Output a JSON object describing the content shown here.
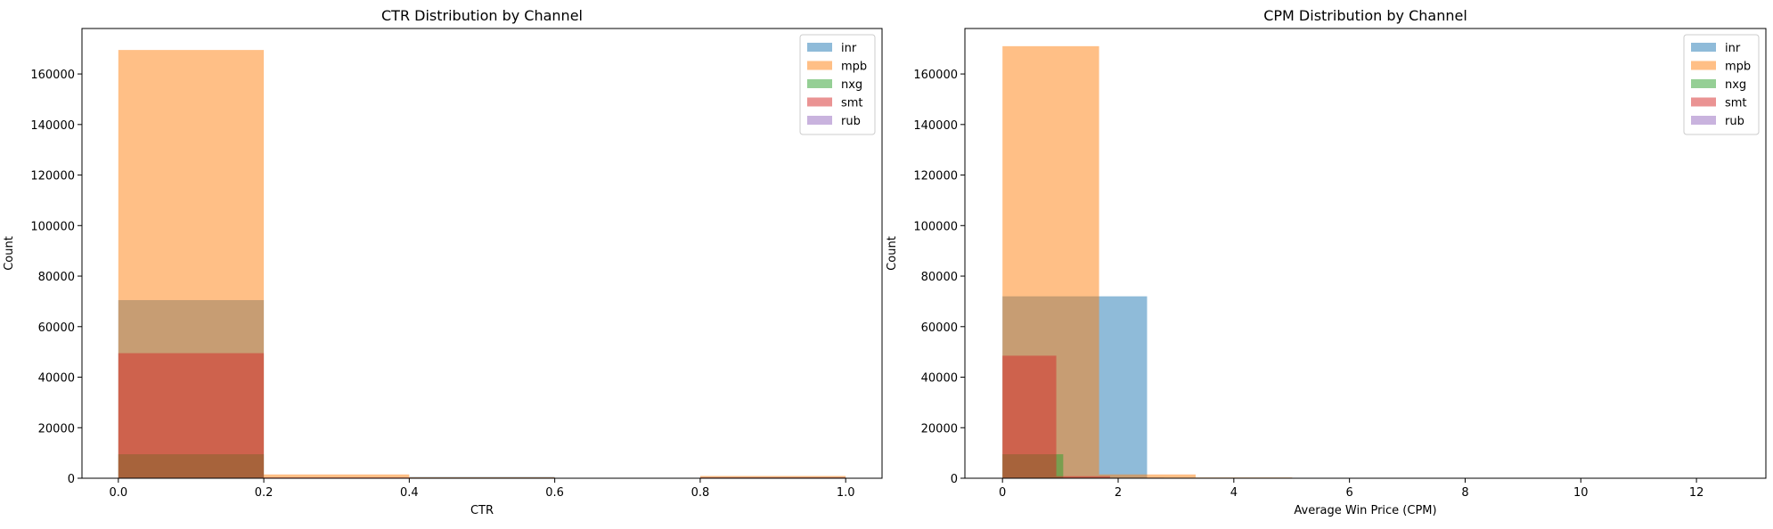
{
  "chart_data": [
    {
      "type": "histogram",
      "title": "CTR Distribution by Channel",
      "xlabel": "CTR",
      "ylabel": "Count",
      "xlim": [
        -0.05,
        1.05
      ],
      "ylim": [
        0,
        178000
      ],
      "xticks": [
        0.0,
        0.2,
        0.4,
        0.6,
        0.8,
        1.0
      ],
      "xtick_labels": [
        "0.0",
        "0.2",
        "0.4",
        "0.6",
        "0.8",
        "1.0"
      ],
      "yticks": [
        0,
        20000,
        40000,
        60000,
        80000,
        100000,
        120000,
        140000,
        160000
      ],
      "ytick_labels": [
        "0",
        "20000",
        "40000",
        "60000",
        "80000",
        "100000",
        "120000",
        "140000",
        "160000"
      ],
      "legend_position": "top-right",
      "series": [
        {
          "name": "inr",
          "color": "#1f77b4",
          "bins": [
            [
              0.0,
              0.2,
              70500
            ],
            [
              0.2,
              0.4,
              0
            ],
            [
              0.4,
              0.6,
              500
            ],
            [
              0.6,
              0.8,
              0
            ],
            [
              0.8,
              1.0,
              500
            ]
          ]
        },
        {
          "name": "mpb",
          "color": "#ff7f0e",
          "bins": [
            [
              0.0,
              0.2,
              169500
            ],
            [
              0.2,
              0.4,
              1500
            ],
            [
              0.4,
              0.6,
              400
            ],
            [
              0.6,
              0.8,
              0
            ],
            [
              0.8,
              1.0,
              900
            ]
          ]
        },
        {
          "name": "nxg",
          "color": "#2ca02c",
          "bins": [
            [
              0.0,
              0.2,
              9500
            ],
            [
              0.2,
              0.4,
              100
            ],
            [
              0.4,
              0.6,
              0
            ],
            [
              0.6,
              0.8,
              0
            ],
            [
              0.8,
              1.0,
              0
            ]
          ]
        },
        {
          "name": "smt",
          "color": "#d62728",
          "bins": [
            [
              0.0,
              0.2,
              49500
            ],
            [
              0.2,
              0.4,
              300
            ],
            [
              0.4,
              0.6,
              200
            ],
            [
              0.6,
              0.8,
              0
            ],
            [
              0.8,
              1.0,
              300
            ]
          ]
        },
        {
          "name": "rub",
          "color": "#9467bd",
          "bins": [
            [
              0.0,
              0.2,
              200
            ],
            [
              0.2,
              0.4,
              0
            ],
            [
              0.4,
              0.6,
              0
            ],
            [
              0.6,
              0.8,
              0
            ],
            [
              0.8,
              1.0,
              0
            ]
          ]
        }
      ]
    },
    {
      "type": "histogram",
      "title": "CPM Distribution by Channel",
      "xlabel": "Average Win Price (CPM)",
      "ylabel": "Count",
      "xlim": [
        -0.65,
        13.2
      ],
      "ylim": [
        0,
        178000
      ],
      "xticks": [
        0,
        2,
        4,
        6,
        8,
        10,
        12
      ],
      "xtick_labels": [
        "0",
        "2",
        "4",
        "6",
        "8",
        "10",
        "12"
      ],
      "yticks": [
        0,
        20000,
        40000,
        60000,
        80000,
        100000,
        120000,
        140000,
        160000
      ],
      "ytick_labels": [
        "0",
        "20000",
        "40000",
        "60000",
        "80000",
        "100000",
        "120000",
        "140000",
        "160000"
      ],
      "legend_position": "top-right",
      "series": [
        {
          "name": "inr",
          "color": "#1f77b4",
          "bins": [
            [
              0.0,
              2.5,
              72000
            ],
            [
              2.5,
              5.0,
              200
            ],
            [
              5.0,
              7.5,
              0
            ],
            [
              7.5,
              10.0,
              0
            ],
            [
              10.0,
              12.5,
              100
            ]
          ]
        },
        {
          "name": "mpb",
          "color": "#ff7f0e",
          "bins": [
            [
              0.0,
              1.67,
              171000
            ],
            [
              1.67,
              3.34,
              1500
            ],
            [
              3.34,
              5.01,
              300
            ],
            [
              5.01,
              6.68,
              0
            ]
          ]
        },
        {
          "name": "nxg",
          "color": "#2ca02c",
          "bins": [
            [
              0.0,
              1.05,
              9500
            ],
            [
              1.05,
              2.1,
              100
            ]
          ]
        },
        {
          "name": "smt",
          "color": "#d62728",
          "bins": [
            [
              0.0,
              0.93,
              48500
            ],
            [
              0.93,
              1.86,
              800
            ],
            [
              1.86,
              2.79,
              200
            ]
          ]
        },
        {
          "name": "rub",
          "color": "#9467bd",
          "bins": [
            [
              0.0,
              0.5,
              200
            ]
          ]
        }
      ]
    }
  ]
}
